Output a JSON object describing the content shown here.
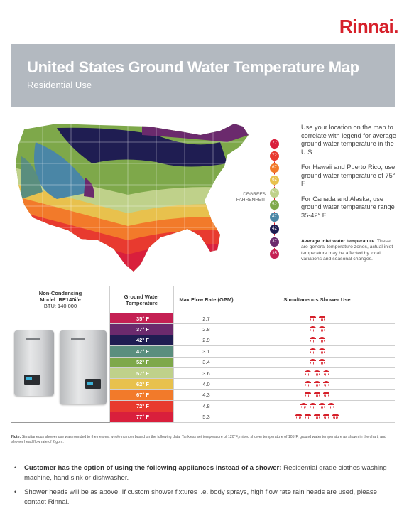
{
  "brand": {
    "name": "Rinnai",
    "mark": "."
  },
  "banner": {
    "title": "United States Ground Water Temperature Map",
    "subtitle": "Residential Use"
  },
  "legend": {
    "label_line1": "DEGREES",
    "label_line2": "FAHRENHEIT",
    "zones": [
      {
        "temp": "77",
        "color": "#d91f3c"
      },
      {
        "temp": "72",
        "color": "#e83a2f"
      },
      {
        "temp": "67",
        "color": "#f27a2a"
      },
      {
        "temp": "62",
        "color": "#e8c14d"
      },
      {
        "temp": "57",
        "color": "#bfd18a"
      },
      {
        "temp": "52",
        "color": "#7ea84a"
      },
      {
        "temp": "47",
        "color": "#4a86a6"
      },
      {
        "temp": "42",
        "color": "#1f1d52"
      },
      {
        "temp": "37",
        "color": "#6b2a6d"
      },
      {
        "temp": "35",
        "color": "#c42053"
      }
    ]
  },
  "side": {
    "p1": "Use your location on the map to correlate with legend for average ground water temperature in the U.S.",
    "p2": "For Hawaii and Puerto Rico, use ground water temperature of 75° F",
    "p3": "For Canada and Alaska, use ground water temperature range 35-42° F.",
    "note_bold": "Average inlet water temperature.",
    "note_text": "These are general temperature zones, actual inlet temperature may be affected by local variations and seasonal changes."
  },
  "table": {
    "col1_line1": "Non-Condensing",
    "col1_line2": "Model: RE140i/e",
    "col1_line3": "BTU: 140,000",
    "col2": "Ground Water Temperature",
    "col3": "Max Flow Rate (GPM)",
    "col4": "Simultaneous Shower Use",
    "rows": [
      {
        "temp": "35° F",
        "color": "#c42053",
        "flow": "2.7",
        "showers": 2
      },
      {
        "temp": "37° F",
        "color": "#6b2a6d",
        "flow": "2.8",
        "showers": 2
      },
      {
        "temp": "42° F",
        "color": "#1f1d52",
        "flow": "2.9",
        "showers": 2
      },
      {
        "temp": "47° F",
        "color": "#5a8e7e",
        "flow": "3.1",
        "showers": 2
      },
      {
        "temp": "52° F",
        "color": "#7ea84a",
        "flow": "3.4",
        "showers": 2
      },
      {
        "temp": "57° F",
        "color": "#bfd18a",
        "flow": "3.6",
        "showers": 3
      },
      {
        "temp": "62° F",
        "color": "#e8c14d",
        "flow": "4.0",
        "showers": 3
      },
      {
        "temp": "67° F",
        "color": "#f27a2a",
        "flow": "4.3",
        "showers": 3
      },
      {
        "temp": "72° F",
        "color": "#e83a2f",
        "flow": "4.8",
        "showers": 4
      },
      {
        "temp": "77° F",
        "color": "#d91f3c",
        "flow": "5.3",
        "showers": 5
      }
    ]
  },
  "note": {
    "bold": "Note:",
    "text": "Simultaneous shower use was rounded to the nearest whole number based on the following data: Tankless set temperature of 120°F, mixed shower temperature of 105°F, ground water temperature as shown in the chart, and shower head flow rate of 2 gpm."
  },
  "bullets": [
    {
      "bold": "Customer has the option of using the following appliances instead of a shower:",
      "text": "Residential grade clothes washing machine, hand sink or dishwasher."
    },
    {
      "bold": "",
      "text": "Shower heads will be as above. If custom shower fixtures i.e. body sprays, high flow rate rain heads are used, please contact Rinnai."
    }
  ]
}
